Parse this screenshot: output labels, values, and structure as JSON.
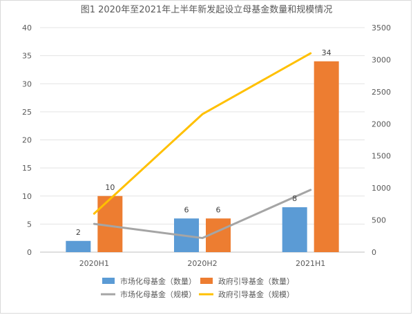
{
  "chart_data": {
    "type": "bar",
    "title": "图1 2020年至2021年上半年新发起设立母基金数量和规模情况",
    "categories": [
      "2020H1",
      "2020H2",
      "2021H1"
    ],
    "y_left": {
      "lim": [
        0,
        40
      ],
      "ticks": [
        0,
        5,
        10,
        15,
        20,
        25,
        30,
        35,
        40
      ]
    },
    "y_right": {
      "lim": [
        0,
        3500
      ],
      "ticks": [
        0,
        500,
        1000,
        1500,
        2000,
        2500,
        3000,
        3500
      ]
    },
    "grid": true,
    "legend_position": "bottom",
    "bar_series": [
      {
        "name": "市场化母基金（数量）",
        "values": [
          2,
          6,
          8
        ],
        "color": "#5b9bd5",
        "axis": "left"
      },
      {
        "name": "政府引导基金（数量）",
        "values": [
          10,
          6,
          34
        ],
        "color": "#ed7d31",
        "axis": "left"
      }
    ],
    "line_series": [
      {
        "name": "市场化母基金（规模）",
        "values": [
          440,
          220,
          970
        ],
        "color": "#a5a5a5",
        "axis": "right"
      },
      {
        "name": "政府引导基金（规模）",
        "values": [
          600,
          2150,
          3100
        ],
        "color": "#ffc000",
        "axis": "right"
      }
    ]
  }
}
